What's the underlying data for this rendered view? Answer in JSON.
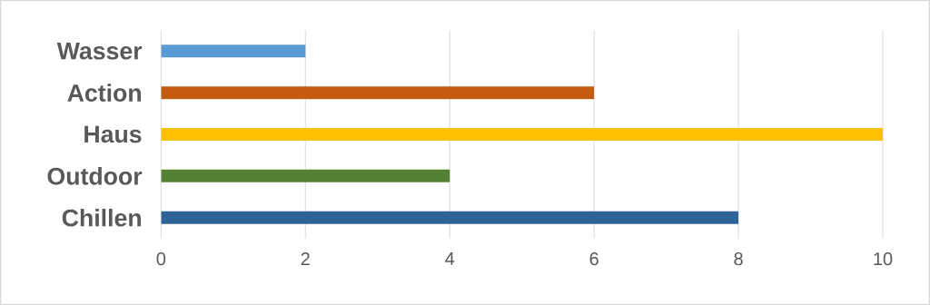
{
  "chart_data": {
    "type": "bar",
    "orientation": "horizontal",
    "categories": [
      "Wasser",
      "Action",
      "Haus",
      "Outdoor",
      "Chillen"
    ],
    "values": [
      2,
      6,
      10,
      4,
      8
    ],
    "colors": [
      "#5b9bd5",
      "#c55a11",
      "#ffc000",
      "#548235",
      "#2e6399"
    ],
    "xlim": [
      0,
      10
    ],
    "xticks": [
      0,
      2,
      4,
      6,
      8,
      10
    ],
    "grid": "x"
  }
}
